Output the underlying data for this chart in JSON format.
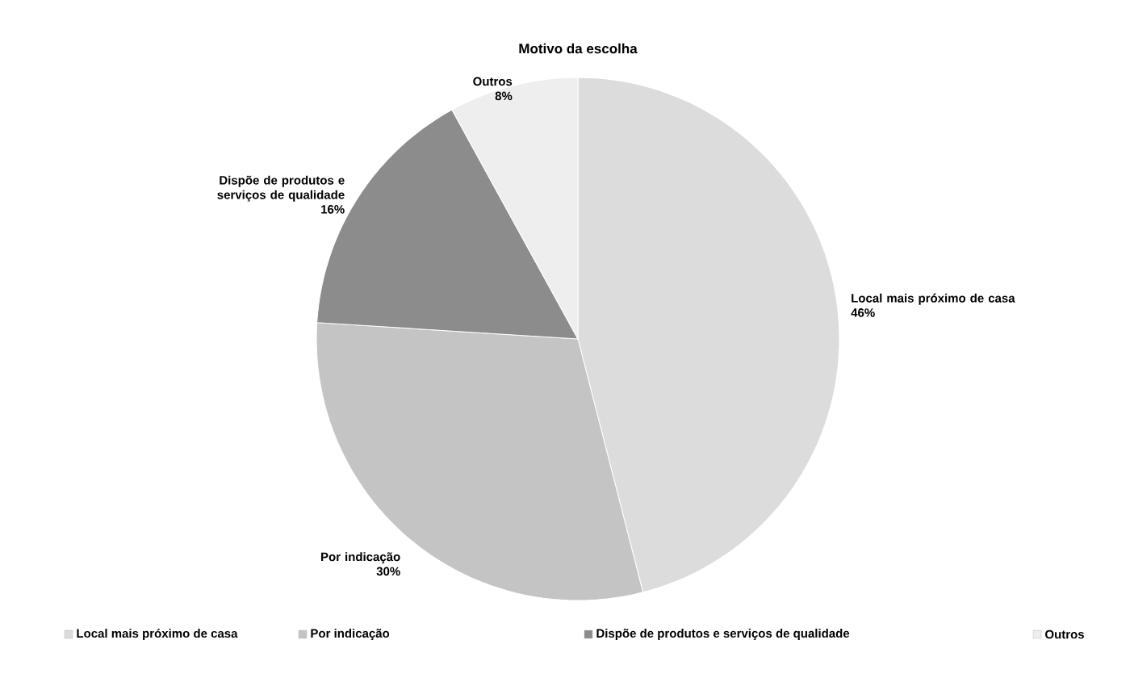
{
  "chart_data": {
    "type": "pie",
    "title": "Motivo da escolha",
    "categories": [
      "Local mais próximo de casa",
      "Por indicação",
      "Dispõe de produtos e serviços de qualidade",
      "Outros"
    ],
    "values": [
      46,
      30,
      16,
      8
    ],
    "colors": [
      "#dcdcdc",
      "#c4c4c4",
      "#8c8c8c",
      "#eeeeee"
    ],
    "value_labels": [
      "46%",
      "30%",
      "16%",
      "8%"
    ],
    "legend": "bottom"
  }
}
